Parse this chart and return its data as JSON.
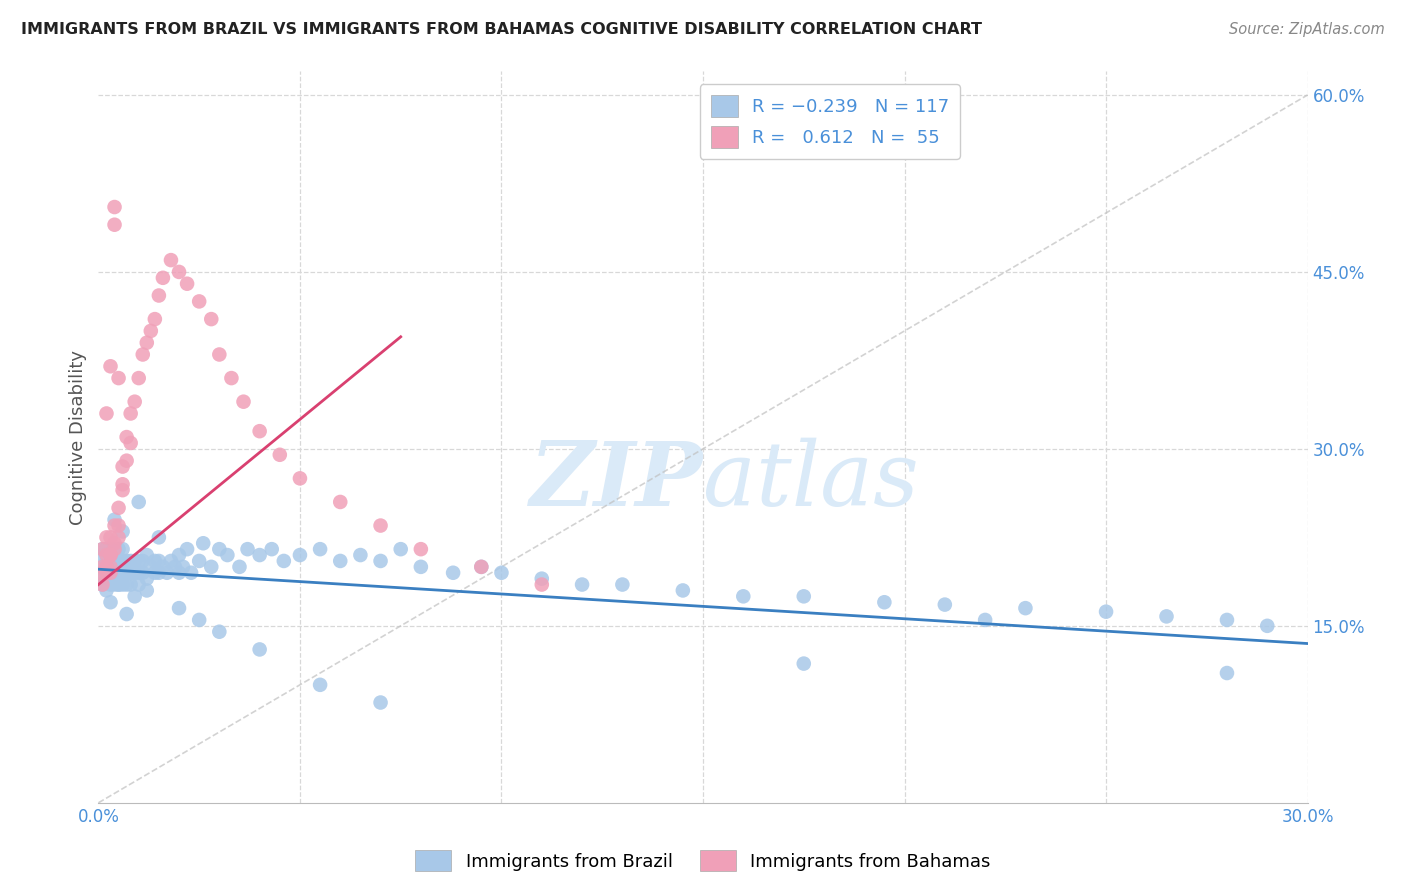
{
  "title": "IMMIGRANTS FROM BRAZIL VS IMMIGRANTS FROM BAHAMAS COGNITIVE DISABILITY CORRELATION CHART",
  "source": "Source: ZipAtlas.com",
  "ylabel": "Cognitive Disability",
  "xlim": [
    0.0,
    0.3
  ],
  "ylim": [
    0.0,
    0.62
  ],
  "brazil_R": -0.239,
  "brazil_N": 117,
  "bahamas_R": 0.612,
  "bahamas_N": 55,
  "brazil_color": "#a8c8e8",
  "bahamas_color": "#f0a0b8",
  "brazil_line_color": "#3a7fc1",
  "bahamas_line_color": "#d94070",
  "diagonal_color": "#c0c0c0",
  "background_color": "#ffffff",
  "grid_color": "#d8d8d8",
  "title_color": "#222222",
  "right_axis_color": "#4a90d9",
  "watermark_text": "ZIPatlas",
  "watermark_color": "#daeaf8",
  "legend_label_brazil": "Immigrants from Brazil",
  "legend_label_bahamas": "Immigrants from Bahamas",
  "brazil_scatter_x": [
    0.001,
    0.001,
    0.001,
    0.001,
    0.001,
    0.002,
    0.002,
    0.002,
    0.002,
    0.002,
    0.002,
    0.002,
    0.003,
    0.003,
    0.003,
    0.003,
    0.003,
    0.003,
    0.003,
    0.004,
    0.004,
    0.004,
    0.004,
    0.004,
    0.004,
    0.005,
    0.005,
    0.005,
    0.005,
    0.005,
    0.006,
    0.006,
    0.006,
    0.006,
    0.006,
    0.007,
    0.007,
    0.007,
    0.007,
    0.008,
    0.008,
    0.008,
    0.009,
    0.009,
    0.01,
    0.01,
    0.01,
    0.011,
    0.011,
    0.012,
    0.012,
    0.013,
    0.014,
    0.014,
    0.015,
    0.015,
    0.016,
    0.017,
    0.018,
    0.019,
    0.02,
    0.02,
    0.021,
    0.022,
    0.023,
    0.025,
    0.026,
    0.028,
    0.03,
    0.032,
    0.035,
    0.037,
    0.04,
    0.043,
    0.046,
    0.05,
    0.055,
    0.06,
    0.065,
    0.07,
    0.075,
    0.08,
    0.088,
    0.095,
    0.1,
    0.11,
    0.12,
    0.13,
    0.145,
    0.16,
    0.175,
    0.195,
    0.21,
    0.23,
    0.25,
    0.265,
    0.28,
    0.29,
    0.175,
    0.22,
    0.28,
    0.004,
    0.006,
    0.008,
    0.01,
    0.012,
    0.015,
    0.003,
    0.005,
    0.007,
    0.009,
    0.02,
    0.025,
    0.03,
    0.04,
    0.055,
    0.07
  ],
  "brazil_scatter_y": [
    0.2,
    0.215,
    0.19,
    0.185,
    0.21,
    0.195,
    0.205,
    0.18,
    0.215,
    0.2,
    0.19,
    0.21,
    0.195,
    0.205,
    0.185,
    0.215,
    0.2,
    0.19,
    0.21,
    0.195,
    0.205,
    0.185,
    0.215,
    0.2,
    0.19,
    0.195,
    0.205,
    0.185,
    0.215,
    0.2,
    0.195,
    0.205,
    0.185,
    0.215,
    0.2,
    0.195,
    0.205,
    0.185,
    0.2,
    0.195,
    0.205,
    0.185,
    0.195,
    0.205,
    0.195,
    0.205,
    0.185,
    0.195,
    0.205,
    0.19,
    0.21,
    0.2,
    0.195,
    0.205,
    0.195,
    0.205,
    0.2,
    0.195,
    0.205,
    0.2,
    0.195,
    0.21,
    0.2,
    0.215,
    0.195,
    0.205,
    0.22,
    0.2,
    0.215,
    0.21,
    0.2,
    0.215,
    0.21,
    0.215,
    0.205,
    0.21,
    0.215,
    0.205,
    0.21,
    0.205,
    0.215,
    0.2,
    0.195,
    0.2,
    0.195,
    0.19,
    0.185,
    0.185,
    0.18,
    0.175,
    0.175,
    0.17,
    0.168,
    0.165,
    0.162,
    0.158,
    0.155,
    0.15,
    0.118,
    0.155,
    0.11,
    0.24,
    0.23,
    0.195,
    0.255,
    0.18,
    0.225,
    0.17,
    0.185,
    0.16,
    0.175,
    0.165,
    0.155,
    0.145,
    0.13,
    0.1,
    0.085
  ],
  "bahamas_scatter_x": [
    0.001,
    0.001,
    0.001,
    0.001,
    0.002,
    0.002,
    0.002,
    0.002,
    0.003,
    0.003,
    0.003,
    0.003,
    0.003,
    0.004,
    0.004,
    0.004,
    0.005,
    0.005,
    0.005,
    0.006,
    0.006,
    0.006,
    0.007,
    0.007,
    0.008,
    0.008,
    0.009,
    0.01,
    0.011,
    0.012,
    0.013,
    0.014,
    0.015,
    0.016,
    0.018,
    0.02,
    0.022,
    0.025,
    0.028,
    0.03,
    0.033,
    0.036,
    0.04,
    0.045,
    0.05,
    0.06,
    0.07,
    0.08,
    0.095,
    0.11,
    0.002,
    0.003,
    0.004,
    0.004,
    0.005
  ],
  "bahamas_scatter_y": [
    0.2,
    0.215,
    0.185,
    0.195,
    0.21,
    0.225,
    0.195,
    0.2,
    0.21,
    0.225,
    0.195,
    0.2,
    0.21,
    0.22,
    0.235,
    0.215,
    0.235,
    0.25,
    0.225,
    0.265,
    0.285,
    0.27,
    0.29,
    0.31,
    0.305,
    0.33,
    0.34,
    0.36,
    0.38,
    0.39,
    0.4,
    0.41,
    0.43,
    0.445,
    0.46,
    0.45,
    0.44,
    0.425,
    0.41,
    0.38,
    0.36,
    0.34,
    0.315,
    0.295,
    0.275,
    0.255,
    0.235,
    0.215,
    0.2,
    0.185,
    0.33,
    0.37,
    0.505,
    0.49,
    0.36
  ],
  "ytick_vals": [
    0.15,
    0.3,
    0.45,
    0.6
  ],
  "ytick_labels": [
    "15.0%",
    "30.0%",
    "45.0%",
    "60.0%"
  ]
}
